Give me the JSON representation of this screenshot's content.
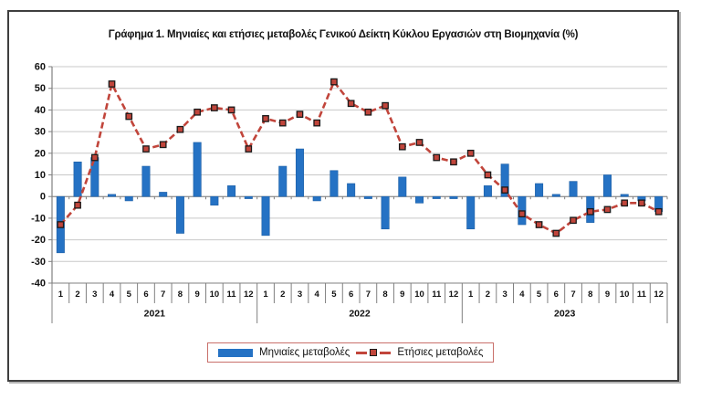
{
  "figure": {
    "title": "Γράφημα 1. Μηνιαίες και ετήσιες μεταβολές  Γενικού Δείκτη Κύκλου Εργασιών στη Βιομηχανία (%)"
  },
  "legend": {
    "monthly_label": "Μηνιαίες μεταβολές",
    "annual_label": "Ετήσιες μεταβολές"
  },
  "chart_data": {
    "type": "bar",
    "title": "Γράφημα 1. Μηνιαίες και ετήσιες μεταβολές  Γενικού Δείκτη Κύκλου Εργασιών στη Βιομηχανία (%)",
    "years": [
      "2021",
      "2022",
      "2023"
    ],
    "month_labels": [
      "1",
      "2",
      "3",
      "4",
      "5",
      "6",
      "7",
      "8",
      "9",
      "10",
      "11",
      "12"
    ],
    "ylim": [
      -40,
      60
    ],
    "ytick_step": 10,
    "grid": true,
    "legend_position": "bottom",
    "series": [
      {
        "name": "Μηνιαίες μεταβολές",
        "type": "bar",
        "values": [
          -26,
          16,
          18,
          1,
          -2,
          14,
          2,
          -17,
          25,
          -4,
          5,
          -1,
          -18,
          14,
          22,
          -2,
          12,
          6,
          -1,
          -15,
          9,
          -3,
          -1,
          -1,
          -15,
          5,
          15,
          -13,
          6,
          1,
          7,
          -12,
          10,
          1,
          -2,
          -7
        ]
      },
      {
        "name": "Ετήσιες μεταβολές",
        "type": "line-dashed-square-markers",
        "values": [
          -13,
          -4,
          18,
          52,
          37,
          22,
          24,
          31,
          39,
          41,
          40,
          22,
          36,
          34,
          38,
          34,
          53,
          43,
          39,
          42,
          23,
          25,
          18,
          16,
          20,
          10,
          3,
          -8,
          -13,
          -17,
          -11,
          -7,
          -6,
          -3,
          -3,
          -7
        ]
      }
    ],
    "colors": {
      "bar": "#2572C4",
      "bar_edge": "#1D5FA5",
      "line": "#C1453B",
      "marker_edge": "#1a1a1a",
      "grid": "#C8C8C8",
      "axis": "#808080",
      "text": "#111111",
      "legend_border": "#C9706B"
    }
  }
}
